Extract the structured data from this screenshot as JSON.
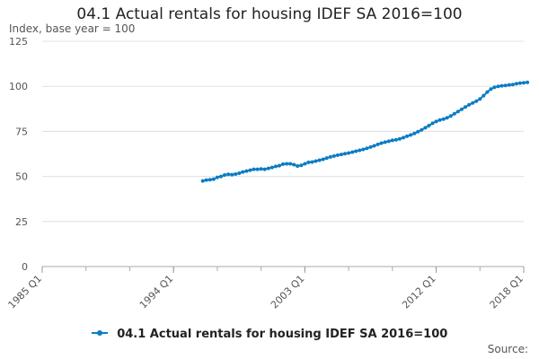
{
  "chart_data": {
    "type": "line",
    "title": "04.1 Actual rentals for housing IDEF SA 2016=100",
    "ylabel": "Index, base year = 100",
    "xlabel": "",
    "yticks": [
      0,
      25,
      50,
      75,
      100,
      125
    ],
    "ylim": [
      0,
      125
    ],
    "xticks": [
      "1985 Q1",
      "1994 Q1",
      "2003 Q1",
      "2012 Q1",
      "2018 Q1"
    ],
    "xlim": [
      "1985 Q1",
      "2018 Q1"
    ],
    "grid": "horizontal",
    "legend_position": "bottom",
    "color": "#0b7cc4",
    "series": [
      {
        "name": "04.1 Actual rentals for housing IDEF SA 2016=100",
        "start": "1996 Q1",
        "values": [
          47.5,
          48.0,
          48.2,
          48.5,
          49.5,
          50.0,
          50.8,
          51.2,
          51.0,
          51.3,
          51.8,
          52.5,
          53.0,
          53.5,
          54.0,
          54.0,
          54.2,
          54.0,
          54.5,
          55.0,
          55.6,
          56.0,
          56.8,
          57.0,
          57.0,
          56.5,
          55.8,
          56.2,
          57.0,
          57.8,
          58.0,
          58.5,
          59.0,
          59.5,
          60.2,
          60.8,
          61.3,
          61.8,
          62.2,
          62.6,
          63.0,
          63.5,
          64.0,
          64.5,
          65.0,
          65.6,
          66.3,
          67.0,
          67.8,
          68.5,
          69.0,
          69.5,
          70.0,
          70.3,
          70.8,
          71.5,
          72.3,
          73.0,
          73.8,
          74.8,
          75.8,
          77.0,
          78.2,
          79.5,
          80.5,
          81.3,
          81.8,
          82.5,
          83.5,
          84.8,
          86.0,
          87.3,
          88.5,
          89.8,
          90.8,
          91.8,
          93.0,
          94.8,
          96.8,
          98.5,
          99.5,
          100.0,
          100.3,
          100.5,
          100.8,
          101.0,
          101.5,
          101.8,
          102.0,
          102.2
        ]
      }
    ],
    "source_label": "Source:"
  }
}
